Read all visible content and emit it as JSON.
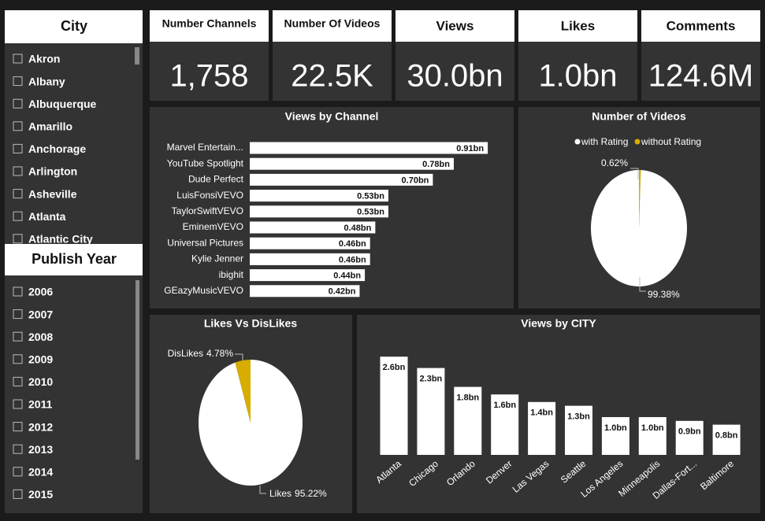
{
  "slicers": [
    {
      "title": "City",
      "items": [
        "Akron",
        "Albany",
        "Albuquerque",
        "Amarillo",
        "Anchorage",
        "Arlington",
        "Asheville",
        "Atlanta",
        "Atlantic City"
      ]
    },
    {
      "title": "Publish Year",
      "items": [
        "2006",
        "2007",
        "2008",
        "2009",
        "2010",
        "2011",
        "2012",
        "2013",
        "2014",
        "2015"
      ]
    }
  ],
  "cards": [
    {
      "label": "Number Channels",
      "value": "1,758"
    },
    {
      "label": "Number Of Videos",
      "value": "22.5K"
    },
    {
      "label": "Views",
      "value": "30.0bn"
    },
    {
      "label": "Likes",
      "value": "1.0bn"
    },
    {
      "label": "Comments",
      "value": "124.6M"
    }
  ],
  "chart_data": [
    {
      "type": "hbar",
      "title": "Views by Channel",
      "categories": [
        "Marvel Entertain...",
        "YouTube Spotlight",
        "Dude Perfect",
        "LuisFonsiVEVO",
        "TaylorSwiftVEVO",
        "EminemVEVO",
        "Universal Pictures",
        "Kylie Jenner",
        "ibighit",
        "GEazyMusicVEVO"
      ],
      "values": [
        0.91,
        0.78,
        0.7,
        0.53,
        0.53,
        0.48,
        0.46,
        0.46,
        0.44,
        0.42
      ],
      "value_labels": [
        "0.91bn",
        "0.78bn",
        "0.70bn",
        "0.53bn",
        "0.53bn",
        "0.48bn",
        "0.46bn",
        "0.46bn",
        "0.44bn",
        "0.42bn"
      ],
      "color": "#ffffff",
      "xlim": [
        0,
        1
      ]
    },
    {
      "type": "pie",
      "title": "Number of Videos",
      "categories": [
        "with Rating",
        "without Rating"
      ],
      "values": [
        99.38,
        0.62
      ],
      "value_labels": [
        "99.38%",
        "0.62%"
      ],
      "colors": [
        "#ffffff",
        "#d6ad00"
      ],
      "legend": "top"
    },
    {
      "type": "pie",
      "title": "Likes Vs DisLikes",
      "categories": [
        "Likes",
        "DisLikes"
      ],
      "values": [
        95.22,
        4.78
      ],
      "value_labels": [
        "95.22%",
        "4.78%"
      ],
      "colors": [
        "#ffffff",
        "#d6ad00"
      ]
    },
    {
      "type": "bar",
      "title": "Views by CITY",
      "categories": [
        "Atlanta",
        "Chicago",
        "Orlando",
        "Denver",
        "Las Vegas",
        "Seattle",
        "Los Angeles",
        "Minneapolis",
        "Dallas-Fort...",
        "Baltimore"
      ],
      "values": [
        2.6,
        2.3,
        1.8,
        1.6,
        1.4,
        1.3,
        1.0,
        1.0,
        0.9,
        0.8
      ],
      "value_labels": [
        "2.6bn",
        "2.3bn",
        "1.8bn",
        "1.6bn",
        "1.4bn",
        "1.3bn",
        "1.0bn",
        "1.0bn",
        "0.9bn",
        "0.8bn"
      ],
      "color": "#ffffff",
      "ylim": [
        0,
        2.5
      ]
    }
  ]
}
